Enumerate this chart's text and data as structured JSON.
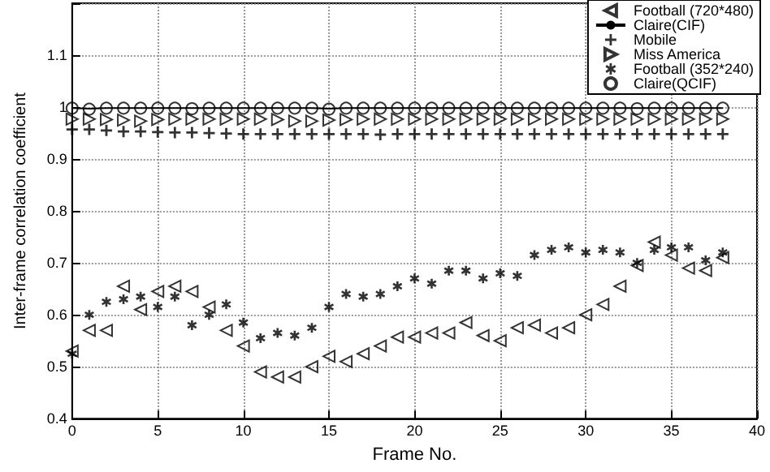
{
  "chart_data": {
    "type": "scatter",
    "xlabel": "Frame No.",
    "ylabel": "Inter-frame correlation coefficient",
    "x": [
      0,
      1,
      2,
      3,
      4,
      5,
      6,
      7,
      8,
      9,
      10,
      11,
      12,
      13,
      14,
      15,
      16,
      17,
      18,
      19,
      20,
      21,
      22,
      23,
      24,
      25,
      26,
      27,
      28,
      29,
      30,
      31,
      32,
      33,
      34,
      35,
      36,
      37,
      38
    ],
    "xlim": [
      0,
      40
    ],
    "xticks": [
      0,
      5,
      10,
      15,
      20,
      25,
      30,
      35,
      40
    ],
    "ylim": [
      0.4,
      1.2
    ],
    "yticks": [
      0.4,
      0.5,
      0.6,
      0.7,
      0.8,
      0.9,
      1,
      1.1,
      {
        "value": 1.2,
        "label": null
      }
    ],
    "grid": true,
    "legend": "top right",
    "series": [
      {
        "name": "Football (720*480)",
        "color": "#000000",
        "marker": "triangle-left",
        "values": [
          0.53,
          0.57,
          0.57,
          0.655,
          0.61,
          0.645,
          0.655,
          0.645,
          0.615,
          0.57,
          0.54,
          0.49,
          0.48,
          0.48,
          0.5,
          0.52,
          0.51,
          0.525,
          0.54,
          0.557,
          0.557,
          0.565,
          0.565,
          0.585,
          0.56,
          0.55,
          0.575,
          0.58,
          0.565,
          0.575,
          0.6,
          0.62,
          0.655,
          0.695,
          0.74,
          0.715,
          0.69,
          0.685,
          0.71
        ]
      },
      {
        "name": "Claire(CIF)",
        "color": "#000000",
        "type": "line",
        "marker": "none",
        "line_style": "solid",
        "values": [
          0.998,
          0.997,
          0.998,
          0.998,
          0.998,
          0.998,
          0.998,
          0.998,
          0.998,
          0.998,
          0.998,
          0.998,
          0.998,
          0.998,
          0.998,
          0.997,
          0.998,
          0.998,
          0.998,
          0.998,
          0.998,
          0.998,
          0.998,
          0.998,
          0.998,
          0.998,
          0.998,
          0.998,
          0.998,
          0.998,
          0.998,
          0.998,
          0.998,
          0.998,
          0.998,
          0.998,
          0.998,
          0.998,
          0.998
        ]
      },
      {
        "name": "Mobile",
        "color": "#000000",
        "marker": "cross",
        "values": [
          0.957,
          0.957,
          0.955,
          0.953,
          0.953,
          0.952,
          0.951,
          0.951,
          0.95,
          0.949,
          0.948,
          0.948,
          0.948,
          0.948,
          0.948,
          0.948,
          0.948,
          0.948,
          0.947,
          0.948,
          0.948,
          0.948,
          0.948,
          0.948,
          0.948,
          0.948,
          0.948,
          0.948,
          0.948,
          0.948,
          0.948,
          0.948,
          0.948,
          0.948,
          0.948,
          0.948,
          0.948,
          0.948,
          0.948
        ]
      },
      {
        "name": "Miss America",
        "color": "#000000",
        "marker": "triangle-right",
        "values": [
          0.977,
          0.977,
          0.976,
          0.975,
          0.973,
          0.976,
          0.977,
          0.977,
          0.977,
          0.977,
          0.977,
          0.977,
          0.976,
          0.973,
          0.973,
          0.975,
          0.976,
          0.977,
          0.977,
          0.977,
          0.977,
          0.977,
          0.977,
          0.977,
          0.977,
          0.977,
          0.977,
          0.977,
          0.977,
          0.977,
          0.977,
          0.977,
          0.977,
          0.977,
          0.977,
          0.977,
          0.977,
          0.977,
          0.977
        ]
      },
      {
        "name": "Football (352*240)",
        "color": "#000000",
        "marker": "star",
        "values": [
          0.525,
          0.6,
          0.625,
          0.63,
          0.635,
          0.615,
          0.635,
          0.58,
          0.6,
          0.62,
          0.585,
          0.555,
          0.565,
          0.56,
          0.575,
          0.615,
          0.64,
          0.635,
          0.64,
          0.655,
          0.67,
          0.66,
          0.685,
          0.685,
          0.67,
          0.68,
          0.675,
          0.715,
          0.725,
          0.73,
          0.72,
          0.725,
          0.72,
          0.7,
          0.725,
          0.73,
          0.73,
          0.705,
          0.72
        ]
      },
      {
        "name": "Claire(QCIF)",
        "color": "#000000",
        "marker": "circle",
        "values": [
          0.998,
          0.996,
          0.998,
          0.998,
          0.998,
          0.998,
          0.998,
          0.997,
          0.998,
          0.998,
          0.998,
          0.998,
          0.998,
          0.998,
          0.998,
          0.996,
          0.998,
          0.998,
          0.998,
          0.998,
          0.998,
          0.998,
          0.998,
          0.998,
          0.998,
          0.998,
          0.998,
          0.998,
          0.998,
          0.998,
          0.998,
          0.998,
          0.998,
          0.997,
          0.998,
          0.998,
          0.998,
          0.998,
          0.998
        ]
      }
    ]
  }
}
